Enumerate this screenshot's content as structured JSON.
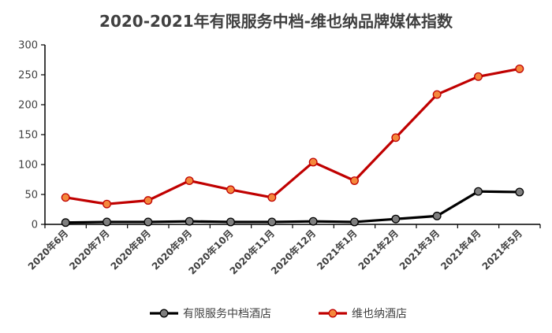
{
  "chart_data": {
    "type": "line",
    "title": "2020-2021年有限服务中档-维也纳品牌媒体指数",
    "xlabel": "",
    "ylabel": "",
    "categories": [
      "2020年6月",
      "2020年7月",
      "2020年8月",
      "2020年9月",
      "2020年10月",
      "2020年11月",
      "2020年12月",
      "2021年1月",
      "2021年2月",
      "2021年3月",
      "2021年4月",
      "2021年5月"
    ],
    "yticks": [
      "0",
      "50",
      "100",
      "150",
      "200",
      "250",
      "300"
    ],
    "ylim": [
      0,
      300
    ],
    "grid": false,
    "legend_position": "bottom",
    "series": [
      {
        "name": "有限服务中档酒店",
        "line_color": "#000000",
        "marker_fill": "#7f7f7f",
        "values": [
          3,
          4,
          4,
          5,
          4,
          4,
          5,
          4,
          9,
          14,
          55,
          54
        ]
      },
      {
        "name": "维也纳酒店",
        "line_color": "#c00000",
        "marker_fill": "#f4883c",
        "values": [
          45,
          34,
          40,
          73,
          58,
          45,
          104,
          73,
          145,
          217,
          247,
          260
        ]
      }
    ]
  }
}
